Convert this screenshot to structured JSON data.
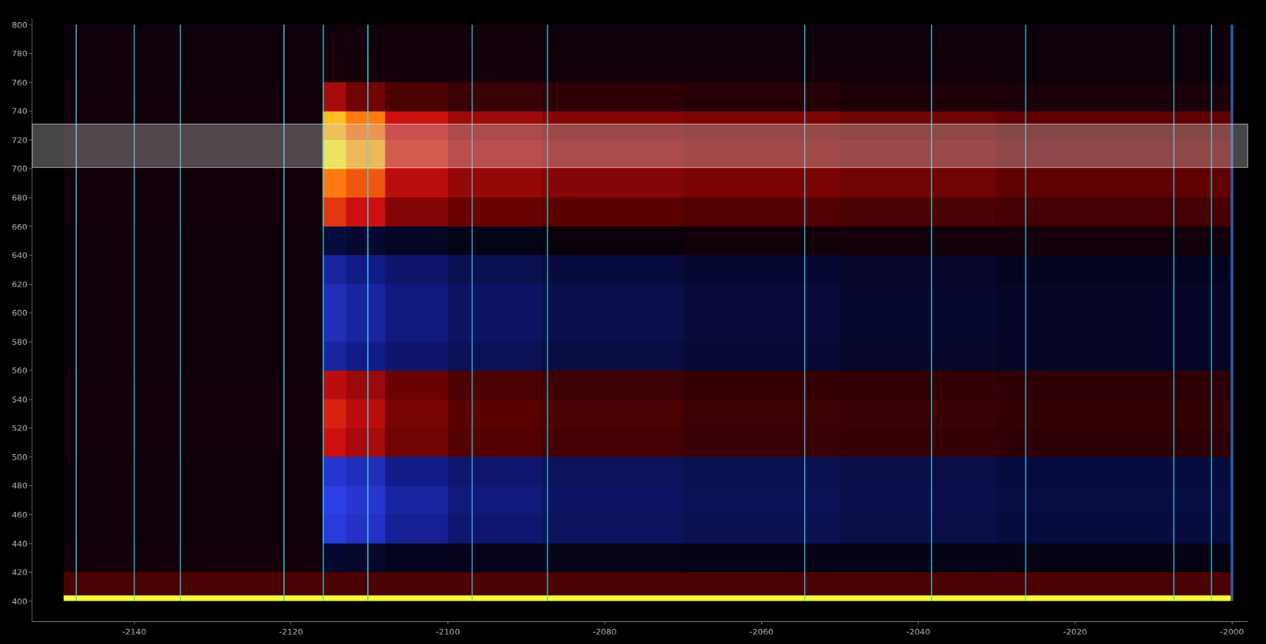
{
  "chart_data": {
    "type": "heatmap",
    "x_edges": [
      -2149,
      -2116,
      -2113,
      -2108,
      -2100,
      -2088,
      -2070,
      -2050,
      -2030,
      -2000
    ],
    "y_edges": [
      400,
      404,
      420,
      440,
      460,
      480,
      500,
      520,
      540,
      560,
      580,
      600,
      620,
      640,
      660,
      680,
      700,
      720,
      740,
      760,
      780,
      800
    ],
    "z": [
      [
        1,
        1,
        1,
        1,
        1,
        1,
        1,
        1,
        1
      ],
      [
        0.2,
        0.2,
        0.2,
        0.2,
        0.2,
        0.2,
        0.2,
        0.2,
        0.2
      ],
      [
        0.04,
        -0.15,
        -0.12,
        -0.08,
        -0.06,
        -0.05,
        -0.04,
        -0.04,
        -0.03
      ],
      [
        0.03,
        -0.85,
        -0.75,
        -0.55,
        -0.4,
        -0.32,
        -0.28,
        -0.24,
        -0.2
      ],
      [
        0.03,
        -0.9,
        -0.8,
        -0.6,
        -0.45,
        -0.35,
        -0.3,
        -0.26,
        -0.22
      ],
      [
        0.03,
        -0.8,
        -0.7,
        -0.5,
        -0.4,
        -0.32,
        -0.28,
        -0.24,
        -0.2
      ],
      [
        0.04,
        0.55,
        0.45,
        0.3,
        0.22,
        0.18,
        0.15,
        0.14,
        0.12
      ],
      [
        0.04,
        0.6,
        0.5,
        0.32,
        0.24,
        0.2,
        0.16,
        0.15,
        0.13
      ],
      [
        0.04,
        0.5,
        0.42,
        0.28,
        0.2,
        0.16,
        0.14,
        0.13,
        0.12
      ],
      [
        0.03,
        -0.6,
        -0.5,
        -0.38,
        -0.3,
        -0.22,
        -0.16,
        -0.12,
        -0.1
      ],
      [
        0.03,
        -0.7,
        -0.6,
        -0.45,
        -0.35,
        -0.26,
        -0.18,
        -0.14,
        -0.1
      ],
      [
        0.03,
        -0.7,
        -0.6,
        -0.45,
        -0.35,
        -0.26,
        -0.18,
        -0.14,
        -0.1
      ],
      [
        0.03,
        -0.6,
        -0.5,
        -0.38,
        -0.28,
        -0.2,
        -0.15,
        -0.12,
        -0.08
      ],
      [
        0.03,
        -0.2,
        -0.15,
        -0.1,
        -0.05,
        0.02,
        0.04,
        0.05,
        0.05
      ],
      [
        0.04,
        0.65,
        0.55,
        0.35,
        0.28,
        0.24,
        0.22,
        0.2,
        0.18
      ],
      [
        0.04,
        0.8,
        0.72,
        0.5,
        0.4,
        0.35,
        0.32,
        0.3,
        0.26
      ],
      [
        0.04,
        0.98,
        0.88,
        0.6,
        0.48,
        0.42,
        0.38,
        0.35,
        0.3
      ],
      [
        0.04,
        0.9,
        0.8,
        0.55,
        0.42,
        0.36,
        0.33,
        0.3,
        0.26
      ],
      [
        0.04,
        0.45,
        0.3,
        0.2,
        0.15,
        0.12,
        0.1,
        0.08,
        0.07
      ],
      [
        0.03,
        0.06,
        0.05,
        0.05,
        0.05,
        0.04,
        0.04,
        0.04,
        0.03
      ],
      [
        0.03,
        0.04,
        0.04,
        0.04,
        0.04,
        0.03,
        0.03,
        0.03,
        0.03
      ]
    ],
    "zlim": [
      -1,
      1
    ],
    "vlines": [
      -2147.4,
      -2140,
      -2134.1,
      -2120.9,
      -2115.9,
      -2110.2,
      -2096.9,
      -2087.3,
      -2054.5,
      -2038.3,
      -2026.3,
      -2007.4,
      -2002.6
    ],
    "cursor": -2000,
    "band": [
      701,
      731
    ],
    "xlim": [
      -2153,
      -1998
    ],
    "ylim": [
      386,
      804
    ],
    "xticks": [
      -2140,
      -2120,
      -2100,
      -2080,
      -2060,
      -2040,
      -2020,
      -2000
    ],
    "yticks": [
      400,
      420,
      440,
      460,
      480,
      500,
      520,
      540,
      560,
      580,
      600,
      620,
      640,
      660,
      680,
      700,
      720,
      740,
      760,
      780,
      800
    ],
    "grid": false
  }
}
